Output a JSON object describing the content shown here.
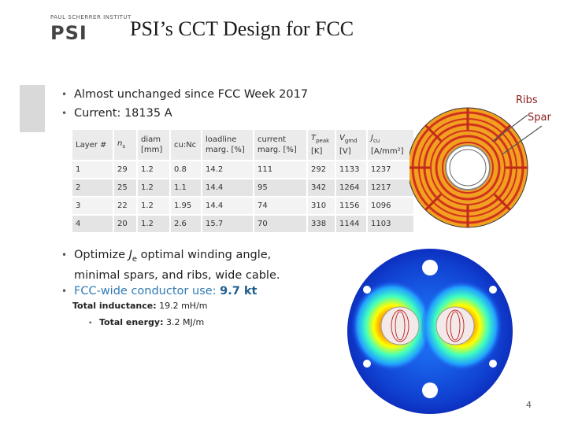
{
  "header": {
    "logo_top_text": "PAUL SCHERRER INSTITUT",
    "logo_mark": "PSI",
    "title": "PSI’s CCT Design for FCC"
  },
  "bullets_top": [
    "Almost unchanged since FCC Week 2017",
    "Current: 18135 A"
  ],
  "table": {
    "headers": [
      {
        "main": "Layer #"
      },
      {
        "main": "n",
        "sub": "s",
        "italic": true
      },
      {
        "main": "diam",
        "line2": "[mm]"
      },
      {
        "main": "cu:Nc"
      },
      {
        "main": "loadline",
        "line2": "marg. [%]"
      },
      {
        "main": "current",
        "line2": "marg. [%]"
      },
      {
        "main": "T",
        "sub": "peak",
        "line2": "[K]",
        "italic": true
      },
      {
        "main": "V",
        "sub": "gmd",
        "line2": "[V]",
        "italic": true
      },
      {
        "main": "J",
        "sub": "cu",
        "line2": "[A/mm²]",
        "italic": true
      }
    ],
    "rows": [
      [
        "1",
        "29",
        "1.2",
        "0.8",
        "14.2",
        "111",
        "292",
        "1133",
        "1237"
      ],
      [
        "2",
        "25",
        "1.2",
        "1.1",
        "14.4",
        "95",
        "342",
        "1264",
        "1217"
      ],
      [
        "3",
        "22",
        "1.2",
        "1.95",
        "14.4",
        "74",
        "310",
        "1156",
        "1096"
      ],
      [
        "4",
        "20",
        "1.2",
        "2.6",
        "15.7",
        "70",
        "338",
        "1144",
        "1103"
      ]
    ]
  },
  "bullet_optimize": {
    "pre": "Optimize ",
    "sym": "J",
    "sub": "e",
    "post": " optimal winding angle,",
    "line2": "minimal spars, and ribs, wide cable."
  },
  "bullet_conductor": {
    "pre": "FCC-wide conductor use: ",
    "value": "9.7 kt"
  },
  "inductance": {
    "label": "Total inductance:",
    "value": " 19.2 mH/m"
  },
  "energy": {
    "label": "Total energy:",
    "value": " 3.2 MJ/m"
  },
  "diagram_labels": {
    "ribs": "Ribs",
    "spar": "Spar"
  },
  "page_number": "4",
  "colors": {
    "accent_blue": "#2f7bb5",
    "label_red": "#8b2020",
    "coil_orange": "#f2a020",
    "coil_red": "#d0321e"
  }
}
